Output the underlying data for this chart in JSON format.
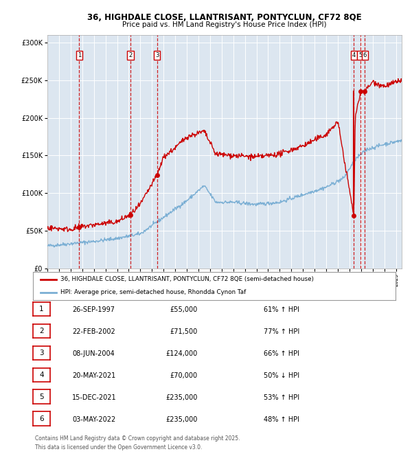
{
  "title_line1": "36, HIGHDALE CLOSE, LLANTRISANT, PONTYCLUN, CF72 8QE",
  "title_line2": "Price paid vs. HM Land Registry's House Price Index (HPI)",
  "legend_line1": "36, HIGHDALE CLOSE, LLANTRISANT, PONTYCLUN, CF72 8QE (semi-detached house)",
  "legend_line2": "HPI: Average price, semi-detached house, Rhondda Cynon Taf",
  "footer_line1": "Contains HM Land Registry data © Crown copyright and database right 2025.",
  "footer_line2": "This data is licensed under the Open Government Licence v3.0.",
  "sale_color": "#cc0000",
  "hpi_color": "#7bafd4",
  "background_color": "#dce6f0",
  "plot_bg_color": "#dce6f0",
  "ylim": [
    0,
    310000
  ],
  "yticks": [
    0,
    50000,
    100000,
    150000,
    200000,
    250000,
    300000
  ],
  "ytick_labels": [
    "£0",
    "£50K",
    "£100K",
    "£150K",
    "£200K",
    "£250K",
    "£300K"
  ],
  "xlim_start": 1995,
  "xlim_end": 2025.5,
  "sales": [
    {
      "num": 1,
      "date_x": 1997.74,
      "price": 55000,
      "label": "1"
    },
    {
      "num": 2,
      "date_x": 2002.14,
      "price": 71500,
      "label": "2"
    },
    {
      "num": 3,
      "date_x": 2004.44,
      "price": 124000,
      "label": "3"
    },
    {
      "num": 4,
      "date_x": 2021.38,
      "price": 70000,
      "label": "4"
    },
    {
      "num": 5,
      "date_x": 2021.96,
      "price": 235000,
      "label": "5"
    },
    {
      "num": 6,
      "date_x": 2022.33,
      "price": 235000,
      "label": "6"
    }
  ],
  "table_rows": [
    {
      "num": "1",
      "date": "26-SEP-1997",
      "price": "£55,000",
      "hpi": "61% ↑ HPI"
    },
    {
      "num": "2",
      "date": "22-FEB-2002",
      "price": "£71,500",
      "hpi": "77% ↑ HPI"
    },
    {
      "num": "3",
      "date": "08-JUN-2004",
      "price": "£124,000",
      "hpi": "66% ↑ HPI"
    },
    {
      "num": "4",
      "date": "20-MAY-2021",
      "price": "£70,000",
      "hpi": "50% ↓ HPI"
    },
    {
      "num": "5",
      "date": "15-DEC-2021",
      "price": "£235,000",
      "hpi": "53% ↑ HPI"
    },
    {
      "num": "6",
      "date": "03-MAY-2022",
      "price": "£235,000",
      "hpi": "48% ↑ HPI"
    }
  ],
  "hpi_knots_t": [
    1995,
    1997,
    1999,
    2001,
    2003,
    2005,
    2007,
    2008.5,
    2009.5,
    2011,
    2013,
    2015,
    2017,
    2019,
    2020.5,
    2021.5,
    2022.5,
    2024,
    2025.5
  ],
  "hpi_knots_v": [
    30000,
    33000,
    36000,
    40000,
    46000,
    68000,
    90000,
    110000,
    88000,
    88000,
    85000,
    88000,
    98000,
    108000,
    120000,
    145000,
    158000,
    165000,
    170000
  ],
  "sale_knots_t": [
    1995,
    1997,
    1997.74,
    1999,
    2001,
    2002.14,
    2003,
    2004.44,
    2005,
    2006,
    2007,
    2008.5,
    2009.5,
    2011,
    2013,
    2015,
    2017,
    2019,
    2020,
    2021.38,
    2021.5,
    2021.96,
    2022.33,
    2023,
    2024,
    2025.5
  ],
  "sale_knots_v": [
    54000,
    52000,
    55000,
    58000,
    62000,
    71500,
    85000,
    124000,
    148000,
    160000,
    175000,
    182000,
    152000,
    150000,
    148000,
    152000,
    163000,
    178000,
    195000,
    70000,
    200000,
    235000,
    235000,
    248000,
    242000,
    250000
  ]
}
